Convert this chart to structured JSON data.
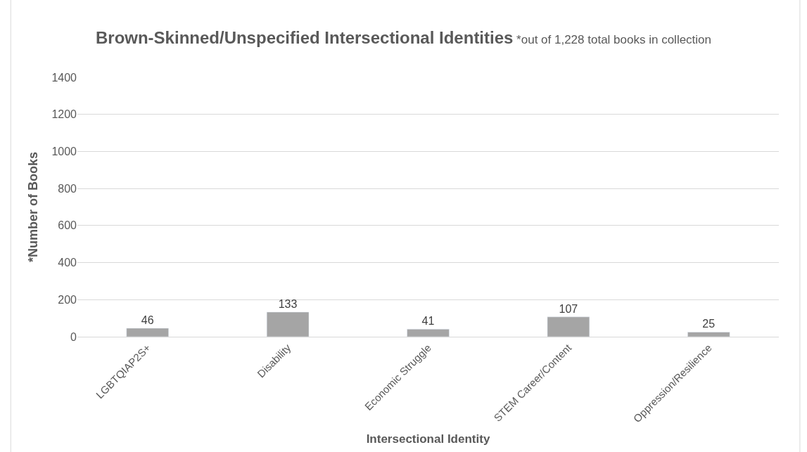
{
  "chart_data": {
    "type": "bar",
    "title": "Brown-Skinned/Unspecified Intersectional Identities",
    "subtitle": "*out of 1,228 total books in collection",
    "xlabel": "Intersectional Identity",
    "ylabel": "*Number of Books",
    "categories": [
      "LGBTQIAP2S+",
      "Disability",
      "Economic Struggle",
      "STEM Career/Content",
      "Oppression/Resilience"
    ],
    "values": [
      46,
      133,
      41,
      107,
      25
    ],
    "color": "#a5a5a5",
    "ylim": [
      0,
      1400
    ],
    "yticks": [
      0,
      200,
      400,
      600,
      800,
      1000,
      1200,
      1400
    ],
    "grid": "y",
    "data_labels": true
  }
}
